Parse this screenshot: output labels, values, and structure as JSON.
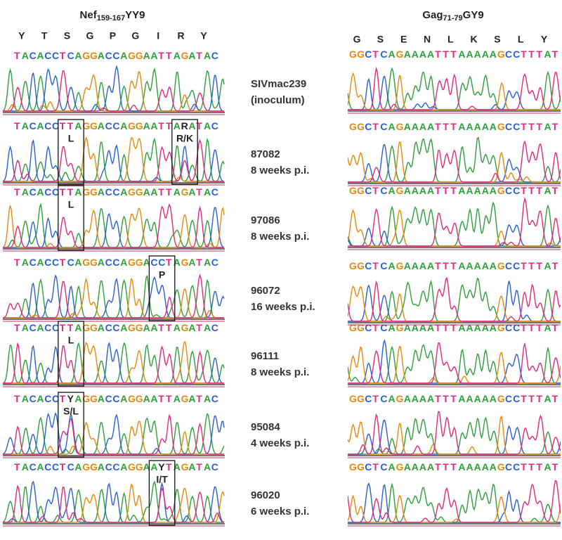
{
  "figure": {
    "left_panel": {
      "title": {
        "name": "Nef",
        "subscript": "159-167",
        "suffix": "YY9"
      },
      "amino_acids": [
        "Y",
        "T",
        "S",
        "G",
        "P",
        "G",
        "I",
        "R",
        "Y"
      ],
      "rows": [
        {
          "sequence": "TACACCTCAGGACCAGGAATTAGATAC",
          "mutations": []
        },
        {
          "sequence": "TACACCTTAGGACCAGGAATTARATAC",
          "mutations": [
            "L",
            "R/K"
          ]
        },
        {
          "sequence": "TACACCTTAGGACCAGGAATTAGATAC",
          "mutations": [
            "L"
          ]
        },
        {
          "sequence": "TACACCTCAGGACCAGGACCTAGATAC",
          "mutations": [
            "P"
          ]
        },
        {
          "sequence": "TACACCTTAGGACCAGGAATTAGATAC",
          "mutations": [
            "L"
          ]
        },
        {
          "sequence": "TACACCTYAGGACCAGGAATTAGATAC",
          "mutations": [
            "S/L"
          ]
        },
        {
          "sequence": "TACACCTCAGGACCAGGAAYTAGATAC",
          "mutations": [
            "I/T"
          ]
        }
      ]
    },
    "right_panel": {
      "title": {
        "name": "Gag",
        "subscript": "71-79",
        "suffix": "GY9"
      },
      "amino_acids": [
        "G",
        "S",
        "E",
        "N",
        "L",
        "K",
        "S",
        "L",
        "Y"
      ],
      "rows": [
        {
          "sequence": "GGCTCAGAAAATTTAAAAAGCCTTTAT"
        },
        {
          "sequence": "GGCTCAGAAAATTTAAAAAGCCTTTAT"
        },
        {
          "sequence": "GGCTCAGAAAATTTAAAAAGCCTTTAT"
        },
        {
          "sequence": "GGCTCAGAAAATTTAAAAAGCCTTTAT"
        },
        {
          "sequence": "GGCTCAGAAAATTTAAAAAGCCTTTAT"
        },
        {
          "sequence": "GGCTCAGAAAATTTAAAAAGCCTTTAT"
        },
        {
          "sequence": "GGCTCAGAAAATTTAAAAAGCCTTTAT"
        }
      ]
    },
    "samples": [
      {
        "id": "SIVmac239",
        "note": "(inoculum)"
      },
      {
        "id": "87082",
        "note": "8 weeks p.i."
      },
      {
        "id": "97086",
        "note": "8 weeks p.i."
      },
      {
        "id": "96072",
        "note": "16 weeks p.i."
      },
      {
        "id": "96111",
        "note": "8 weeks p.i."
      },
      {
        "id": "95084",
        "note": "4 weeks p.i."
      },
      {
        "id": "96020",
        "note": "6 weeks p.i."
      }
    ]
  }
}
